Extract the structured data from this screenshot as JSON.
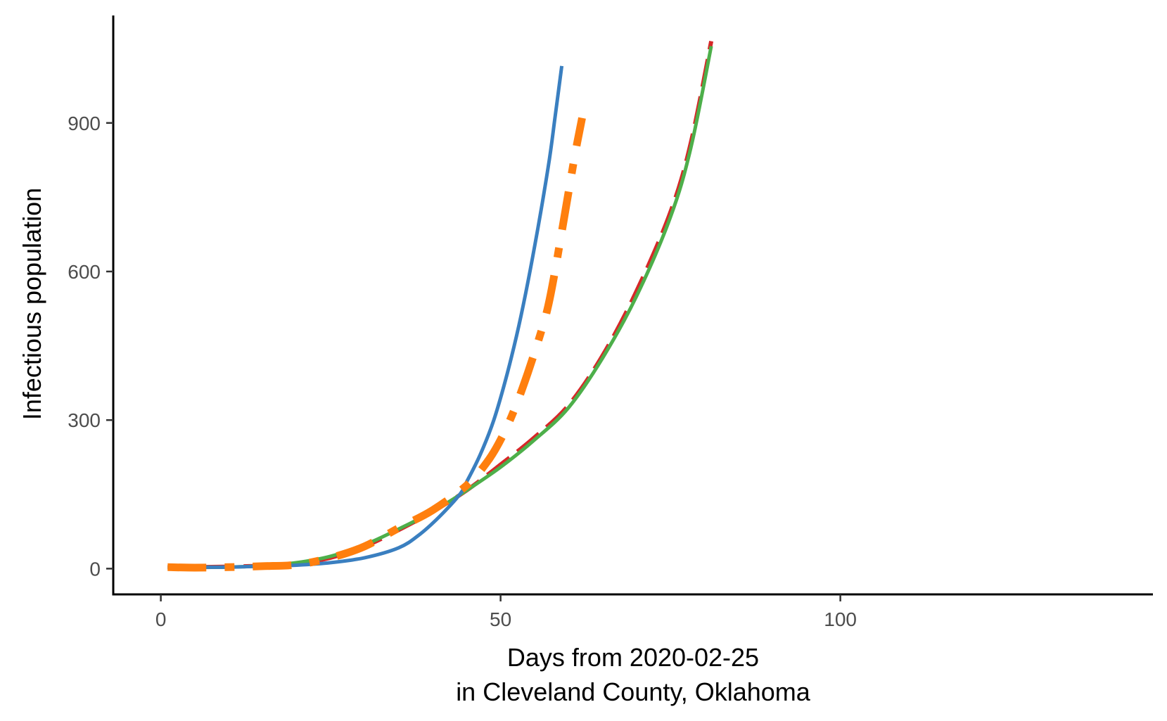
{
  "chart_data": {
    "type": "line",
    "title": "",
    "xlabel_lines": [
      "Days from 2020-02-25",
      "in Cleveland County, Oklahoma"
    ],
    "ylabel": "Infectious population",
    "xlim": [
      -7,
      146
    ],
    "ylim": [
      -52,
      1117
    ],
    "x_ticks": [
      0,
      50,
      100
    ],
    "x_tick_labels": [
      "0",
      "50",
      "100"
    ],
    "y_ticks": [
      0,
      300,
      600,
      900
    ],
    "y_tick_labels": [
      "0",
      "300",
      "600",
      "900"
    ],
    "grid": false,
    "legend": "none",
    "axis_color": "#000000",
    "series": [
      {
        "color": "#3a7fc0",
        "line_style": "solid",
        "x": [
          1,
          5,
          10,
          15,
          20,
          25,
          30,
          35,
          38,
          41,
          44,
          45,
          47,
          49,
          51,
          53,
          55,
          57,
          58,
          59
        ],
        "y": [
          3,
          3,
          3,
          5,
          7,
          12,
          22,
          42,
          68,
          105,
          150,
          175,
          230,
          300,
          395,
          510,
          650,
          810,
          910,
          1015
        ]
      },
      {
        "color": "#ff7f0e",
        "line_style": "dashdot-thick",
        "x": [
          1,
          5,
          10,
          15,
          20,
          25,
          30,
          35,
          40,
          45,
          48,
          50,
          52,
          54,
          56,
          57,
          58,
          59,
          60,
          61,
          62
        ],
        "y": [
          3,
          2,
          3,
          5,
          8,
          22,
          45,
          82,
          118,
          168,
          215,
          260,
          320,
          395,
          480,
          530,
          600,
          680,
          760,
          840,
          910
        ]
      },
      {
        "color": "#d62728",
        "line_style": "longdash",
        "x": [
          1,
          5,
          10,
          15,
          20,
          25,
          30,
          35,
          40,
          45,
          50,
          55,
          60,
          65,
          70,
          75,
          78,
          81
        ],
        "y": [
          3,
          3,
          4,
          6,
          10,
          22,
          45,
          78,
          115,
          158,
          210,
          265,
          330,
          430,
          560,
          720,
          860,
          1065
        ]
      },
      {
        "color": "#4daf4a",
        "line_style": "solid",
        "x": [
          1,
          5,
          10,
          15,
          20,
          25,
          30,
          35,
          40,
          45,
          50,
          55,
          60,
          65,
          70,
          75,
          78,
          81
        ],
        "y": [
          2,
          3,
          3,
          6,
          12,
          25,
          48,
          80,
          115,
          158,
          205,
          260,
          325,
          425,
          550,
          710,
          850,
          1055
        ]
      }
    ]
  }
}
